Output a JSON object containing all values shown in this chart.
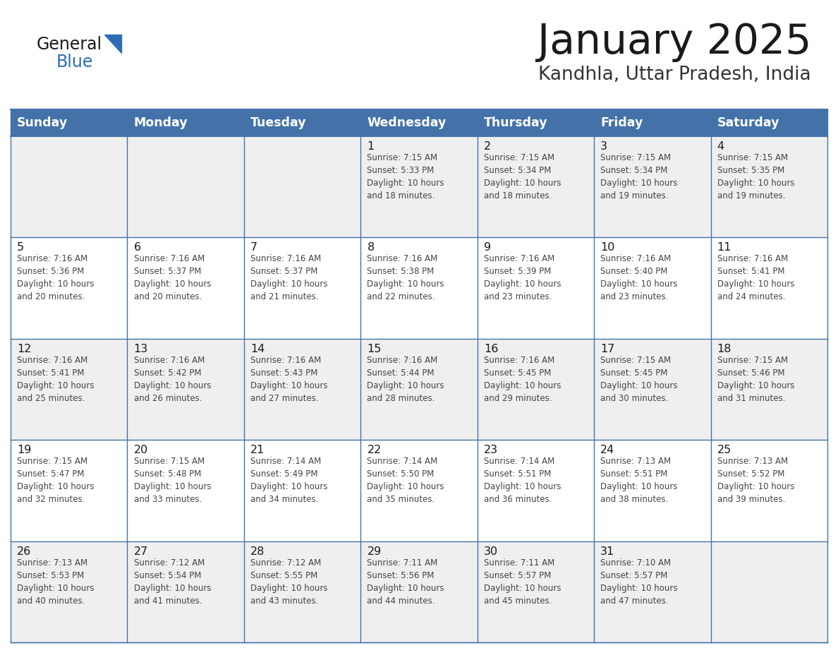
{
  "title": "January 2025",
  "subtitle": "Kandhla, Uttar Pradesh, India",
  "header_bg_color": "#4472a8",
  "header_text_color": "#ffffff",
  "day_names": [
    "Sunday",
    "Monday",
    "Tuesday",
    "Wednesday",
    "Thursday",
    "Friday",
    "Saturday"
  ],
  "odd_row_bg": "#efefef",
  "even_row_bg": "#ffffff",
  "border_color": "#4472a8",
  "title_color": "#1a1a1a",
  "subtitle_color": "#333333",
  "cell_text_color": "#444444",
  "day_num_color": "#1a1a1a",
  "logo_general_color": "#1a1a1a",
  "logo_blue_color": "#2e6db4",
  "logo_triangle_color": "#2e6db4",
  "calendar": [
    [
      {
        "day": "",
        "text": ""
      },
      {
        "day": "",
        "text": ""
      },
      {
        "day": "",
        "text": ""
      },
      {
        "day": "1",
        "text": "Sunrise: 7:15 AM\nSunset: 5:33 PM\nDaylight: 10 hours\nand 18 minutes."
      },
      {
        "day": "2",
        "text": "Sunrise: 7:15 AM\nSunset: 5:34 PM\nDaylight: 10 hours\nand 18 minutes."
      },
      {
        "day": "3",
        "text": "Sunrise: 7:15 AM\nSunset: 5:34 PM\nDaylight: 10 hours\nand 19 minutes."
      },
      {
        "day": "4",
        "text": "Sunrise: 7:15 AM\nSunset: 5:35 PM\nDaylight: 10 hours\nand 19 minutes."
      }
    ],
    [
      {
        "day": "5",
        "text": "Sunrise: 7:16 AM\nSunset: 5:36 PM\nDaylight: 10 hours\nand 20 minutes."
      },
      {
        "day": "6",
        "text": "Sunrise: 7:16 AM\nSunset: 5:37 PM\nDaylight: 10 hours\nand 20 minutes."
      },
      {
        "day": "7",
        "text": "Sunrise: 7:16 AM\nSunset: 5:37 PM\nDaylight: 10 hours\nand 21 minutes."
      },
      {
        "day": "8",
        "text": "Sunrise: 7:16 AM\nSunset: 5:38 PM\nDaylight: 10 hours\nand 22 minutes."
      },
      {
        "day": "9",
        "text": "Sunrise: 7:16 AM\nSunset: 5:39 PM\nDaylight: 10 hours\nand 23 minutes."
      },
      {
        "day": "10",
        "text": "Sunrise: 7:16 AM\nSunset: 5:40 PM\nDaylight: 10 hours\nand 23 minutes."
      },
      {
        "day": "11",
        "text": "Sunrise: 7:16 AM\nSunset: 5:41 PM\nDaylight: 10 hours\nand 24 minutes."
      }
    ],
    [
      {
        "day": "12",
        "text": "Sunrise: 7:16 AM\nSunset: 5:41 PM\nDaylight: 10 hours\nand 25 minutes."
      },
      {
        "day": "13",
        "text": "Sunrise: 7:16 AM\nSunset: 5:42 PM\nDaylight: 10 hours\nand 26 minutes."
      },
      {
        "day": "14",
        "text": "Sunrise: 7:16 AM\nSunset: 5:43 PM\nDaylight: 10 hours\nand 27 minutes."
      },
      {
        "day": "15",
        "text": "Sunrise: 7:16 AM\nSunset: 5:44 PM\nDaylight: 10 hours\nand 28 minutes."
      },
      {
        "day": "16",
        "text": "Sunrise: 7:16 AM\nSunset: 5:45 PM\nDaylight: 10 hours\nand 29 minutes."
      },
      {
        "day": "17",
        "text": "Sunrise: 7:15 AM\nSunset: 5:45 PM\nDaylight: 10 hours\nand 30 minutes."
      },
      {
        "day": "18",
        "text": "Sunrise: 7:15 AM\nSunset: 5:46 PM\nDaylight: 10 hours\nand 31 minutes."
      }
    ],
    [
      {
        "day": "19",
        "text": "Sunrise: 7:15 AM\nSunset: 5:47 PM\nDaylight: 10 hours\nand 32 minutes."
      },
      {
        "day": "20",
        "text": "Sunrise: 7:15 AM\nSunset: 5:48 PM\nDaylight: 10 hours\nand 33 minutes."
      },
      {
        "day": "21",
        "text": "Sunrise: 7:14 AM\nSunset: 5:49 PM\nDaylight: 10 hours\nand 34 minutes."
      },
      {
        "day": "22",
        "text": "Sunrise: 7:14 AM\nSunset: 5:50 PM\nDaylight: 10 hours\nand 35 minutes."
      },
      {
        "day": "23",
        "text": "Sunrise: 7:14 AM\nSunset: 5:51 PM\nDaylight: 10 hours\nand 36 minutes."
      },
      {
        "day": "24",
        "text": "Sunrise: 7:13 AM\nSunset: 5:51 PM\nDaylight: 10 hours\nand 38 minutes."
      },
      {
        "day": "25",
        "text": "Sunrise: 7:13 AM\nSunset: 5:52 PM\nDaylight: 10 hours\nand 39 minutes."
      }
    ],
    [
      {
        "day": "26",
        "text": "Sunrise: 7:13 AM\nSunset: 5:53 PM\nDaylight: 10 hours\nand 40 minutes."
      },
      {
        "day": "27",
        "text": "Sunrise: 7:12 AM\nSunset: 5:54 PM\nDaylight: 10 hours\nand 41 minutes."
      },
      {
        "day": "28",
        "text": "Sunrise: 7:12 AM\nSunset: 5:55 PM\nDaylight: 10 hours\nand 43 minutes."
      },
      {
        "day": "29",
        "text": "Sunrise: 7:11 AM\nSunset: 5:56 PM\nDaylight: 10 hours\nand 44 minutes."
      },
      {
        "day": "30",
        "text": "Sunrise: 7:11 AM\nSunset: 5:57 PM\nDaylight: 10 hours\nand 45 minutes."
      },
      {
        "day": "31",
        "text": "Sunrise: 7:10 AM\nSunset: 5:57 PM\nDaylight: 10 hours\nand 47 minutes."
      },
      {
        "day": "",
        "text": ""
      }
    ]
  ]
}
